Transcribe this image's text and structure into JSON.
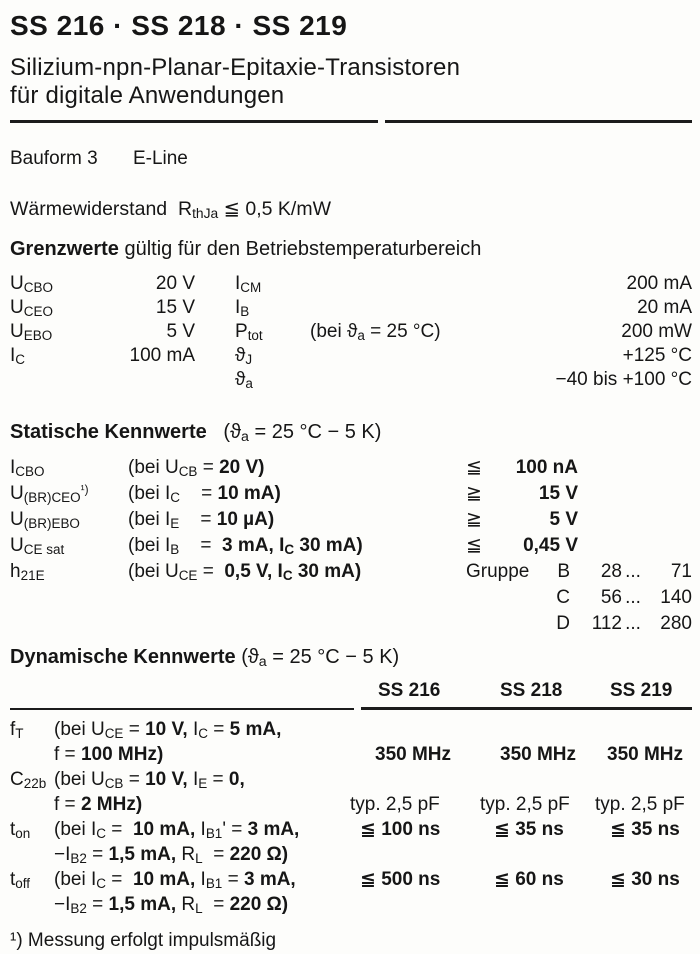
{
  "header": {
    "title": "SS 216 · SS 218 · SS 219",
    "subtitle1": "Silizium-npn-Planar-Epitaxie-Transistoren",
    "subtitle2": "für digitale Anwendungen"
  },
  "bauform": {
    "label": "Bauform 3",
    "value": "E-Line"
  },
  "thermal": {
    "rich": [
      {
        "v": "Wärmewiderstand  "
      },
      {
        "v": "R"
      },
      {
        "v": "thJa",
        "k": "s"
      },
      {
        "v": " ≦ 0,5 K/mW"
      }
    ]
  },
  "grenzwerte": {
    "heading_bold": "Grenzwerte",
    "heading_rest": " gültig für den Betriebstemperaturbereich",
    "rows": [
      {
        "sym1": [
          {
            "v": "U"
          },
          {
            "v": "CBO",
            "k": "s"
          }
        ],
        "val1": "20 V",
        "sym2": [
          {
            "v": "I"
          },
          {
            "v": "CM",
            "k": "s"
          }
        ],
        "cond": [],
        "val2": "200 mA"
      },
      {
        "sym1": [
          {
            "v": "U"
          },
          {
            "v": "CEO",
            "k": "s"
          }
        ],
        "val1": "15 V",
        "sym2": [
          {
            "v": "I"
          },
          {
            "v": "B",
            "k": "s"
          }
        ],
        "cond": [],
        "val2": "20 mA"
      },
      {
        "sym1": [
          {
            "v": "U"
          },
          {
            "v": "EBO",
            "k": "s"
          }
        ],
        "val1": "5 V",
        "sym2": [
          {
            "v": "P"
          },
          {
            "v": "tot",
            "k": "s"
          }
        ],
        "cond": [
          {
            "v": "(bei ϑ"
          },
          {
            "v": "a",
            "k": "s"
          },
          {
            "v": " = 25 °C)"
          }
        ],
        "val2": "200 mW"
      },
      {
        "sym1": [
          {
            "v": "I"
          },
          {
            "v": "C",
            "k": "s"
          }
        ],
        "val1": "100 mA",
        "sym2": [
          {
            "v": "ϑ"
          },
          {
            "v": "J",
            "k": "s"
          }
        ],
        "cond": [],
        "val2": "+125 °C"
      },
      {
        "sym1": [],
        "val1": "",
        "sym2": [
          {
            "v": "ϑ"
          },
          {
            "v": "a",
            "k": "s"
          }
        ],
        "cond": [],
        "val2": "−40 bis +100 °C"
      }
    ]
  },
  "statische": {
    "heading_bold": "Statische Kennwerte",
    "heading_rest": [
      {
        "v": "   (ϑ"
      },
      {
        "v": "a",
        "k": "s"
      },
      {
        "v": " = 25 °C − 5 K)"
      }
    ],
    "rows": [
      {
        "sym": [
          {
            "v": "I"
          },
          {
            "v": "CBO",
            "k": "s"
          }
        ],
        "cond": [
          {
            "v": "(bei U"
          },
          {
            "v": "CB",
            "k": "s"
          },
          {
            "v": " = "
          },
          {
            "v": "20 V)",
            "b": true
          }
        ],
        "rel": "≦",
        "val": "100 nA"
      },
      {
        "sym": [
          {
            "v": "U"
          },
          {
            "v": "(BR)CEO",
            "k": "s"
          },
          {
            "v": "¹)",
            "k": "p"
          }
        ],
        "cond": [
          {
            "v": "(bei I"
          },
          {
            "v": "C",
            "k": "s"
          },
          {
            "v": "    = "
          },
          {
            "v": "10 mA)",
            "b": true
          }
        ],
        "rel": "≧",
        "val": "15 V"
      },
      {
        "sym": [
          {
            "v": "U"
          },
          {
            "v": "(BR)EBO",
            "k": "s"
          }
        ],
        "cond": [
          {
            "v": "(bei I"
          },
          {
            "v": "E",
            "k": "s"
          },
          {
            "v": "    = "
          },
          {
            "v": "10 µA)",
            "b": true
          }
        ],
        "rel": "≧",
        "val": "5 V"
      },
      {
        "sym": [
          {
            "v": "U"
          },
          {
            "v": "CE sat",
            "k": "s"
          }
        ],
        "cond": [
          {
            "v": "(bei I"
          },
          {
            "v": "B",
            "k": "s"
          },
          {
            "v": "    =  "
          },
          {
            "v": "3 mA, ",
            "b": true
          },
          {
            "v": "I",
            "b": true
          },
          {
            "v": "C",
            "k": "s",
            "b": true
          },
          {
            "v": " 30 mA)",
            "b": true
          }
        ],
        "rel": "≦",
        "val": "0,45 V"
      },
      {
        "sym": [
          {
            "v": "h"
          },
          {
            "v": "21E",
            "k": "s"
          }
        ],
        "cond": [
          {
            "v": "(bei U"
          },
          {
            "v": "CE",
            "k": "s"
          },
          {
            "v": " =  "
          },
          {
            "v": "0,5 V, ",
            "b": true
          },
          {
            "v": "I",
            "b": true
          },
          {
            "v": "C",
            "k": "s",
            "b": true
          },
          {
            "v": " 30 mA)",
            "b": true
          }
        ],
        "rel": "",
        "val": ""
      }
    ],
    "gruppe": {
      "label": "Gruppe",
      "entries": [
        {
          "letter": "B",
          "from": "28",
          "dots": "...",
          "to": "71"
        },
        {
          "letter": "C",
          "from": "56",
          "dots": "...",
          "to": "140"
        },
        {
          "letter": "D",
          "from": "112",
          "dots": "...",
          "to": "280"
        }
      ]
    }
  },
  "dynamische": {
    "heading_bold": "Dynamische Kennwerte",
    "heading_rest": [
      {
        "v": " (ϑ"
      },
      {
        "v": "a",
        "k": "s"
      },
      {
        "v": " = 25 °C − 5 K)"
      }
    ],
    "columns": [
      "SS 216",
      "SS 218",
      "SS 219"
    ],
    "rows": {
      "ft": {
        "sym": [
          {
            "v": "f"
          },
          {
            "v": "T",
            "k": "s"
          }
        ],
        "cond1": [
          {
            "v": "(bei U"
          },
          {
            "v": "CE",
            "k": "s"
          },
          {
            "v": " = "
          },
          {
            "v": "10 V, ",
            "b": true
          },
          {
            "v": "I"
          },
          {
            "v": "C",
            "k": "s"
          },
          {
            "v": " = "
          },
          {
            "v": "5 mA,",
            "b": true
          }
        ],
        "cond2": [
          {
            "v": "f = "
          },
          {
            "v": "100 MHz)",
            "b": true
          }
        ],
        "values": [
          "350 MHz",
          "350 MHz",
          "350 MHz"
        ]
      },
      "c22b": {
        "sym": [
          {
            "v": "C"
          },
          {
            "v": "22b",
            "k": "s"
          }
        ],
        "cond1": [
          {
            "v": "(bei U"
          },
          {
            "v": "CB",
            "k": "s"
          },
          {
            "v": " = "
          },
          {
            "v": "10 V, ",
            "b": true
          },
          {
            "v": "I"
          },
          {
            "v": "E",
            "k": "s"
          },
          {
            "v": " = "
          },
          {
            "v": "0,",
            "b": true
          }
        ],
        "cond2": [
          {
            "v": "f = "
          },
          {
            "v": "2 MHz)",
            "b": true
          }
        ],
        "values": [
          "typ. 2,5 pF",
          "typ. 2,5 pF",
          "typ. 2,5 pF"
        ]
      },
      "ton": {
        "sym": [
          {
            "v": "t"
          },
          {
            "v": "on",
            "k": "s"
          }
        ],
        "cond1": [
          {
            "v": "(bei I"
          },
          {
            "v": "C",
            "k": "s"
          },
          {
            "v": " =  "
          },
          {
            "v": "10 mA, ",
            "b": true
          },
          {
            "v": "I"
          },
          {
            "v": "B1",
            "k": "s"
          },
          {
            "v": "' = "
          },
          {
            "v": "3 mA,",
            "b": true
          }
        ],
        "cond2": [
          {
            "v": "−I"
          },
          {
            "v": "B2",
            "k": "s"
          },
          {
            "v": " = "
          },
          {
            "v": "1,5 mA, ",
            "b": true
          },
          {
            "v": "R"
          },
          {
            "v": "L",
            "k": "s"
          },
          {
            "v": "  = "
          },
          {
            "v": "220 Ω)",
            "b": true
          }
        ],
        "values": [
          "≦ 100 ns",
          "≦ 35 ns",
          "≦ 35 ns"
        ]
      },
      "toff": {
        "sym": [
          {
            "v": "t"
          },
          {
            "v": "off",
            "k": "s"
          }
        ],
        "cond1": [
          {
            "v": "(bei I"
          },
          {
            "v": "C",
            "k": "s"
          },
          {
            "v": " =  "
          },
          {
            "v": "10 mA, ",
            "b": true
          },
          {
            "v": "I"
          },
          {
            "v": "B1",
            "k": "s"
          },
          {
            "v": " = "
          },
          {
            "v": "3 mA,",
            "b": true
          }
        ],
        "cond2": [
          {
            "v": "−I"
          },
          {
            "v": "B2",
            "k": "s"
          },
          {
            "v": " = "
          },
          {
            "v": "1,5 mA, ",
            "b": true
          },
          {
            "v": "R"
          },
          {
            "v": "L",
            "k": "s"
          },
          {
            "v": "  = "
          },
          {
            "v": "220 Ω)",
            "b": true
          }
        ],
        "values": [
          "≦ 500 ns",
          "≦ 60 ns",
          "≦ 30 ns"
        ]
      }
    }
  },
  "footnote": "¹) Messung erfolgt impulsmäßig"
}
